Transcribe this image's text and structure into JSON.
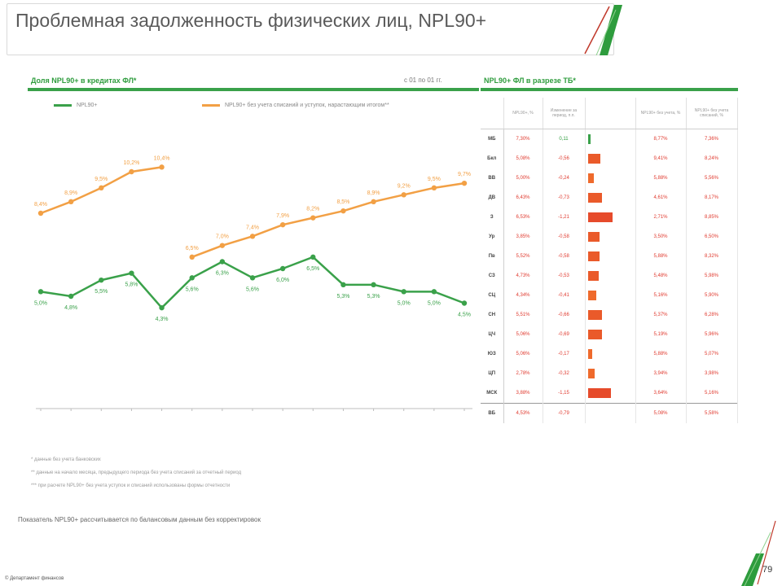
{
  "header": {
    "title": "Проблемная задолженность физических лиц, NPL90+"
  },
  "left_panel": {
    "title": "Доля NPL90+ в кредитах ФЛ*"
  },
  "range_note": "с 01 по 01 гг.",
  "right_panel": {
    "title": "NPL90+ ФЛ в разрезе ТБ*"
  },
  "legend": {
    "series1": "NPL90+",
    "series2": "NPL90+ без учета списаний и уступок, нарастающим итогом**"
  },
  "chart_data": {
    "type": "line",
    "series": [
      {
        "color": "#3aa14a",
        "values": [
          5.0,
          4.8,
          5.5,
          5.8,
          4.3,
          5.6,
          6.3,
          5.6,
          6.0,
          6.5,
          5.3,
          5.3,
          5.0,
          5.0,
          4.5
        ],
        "labels": [
          "5,0%",
          "4,8%",
          "5,5%",
          "5,8%",
          "4,3%",
          "5,6%",
          "6,3%",
          "5,6%",
          "6,0%",
          "6,5%",
          "5,3%",
          "5,3%",
          "5,0%",
          "5,0%",
          "4,5%"
        ]
      },
      {
        "color": "#f2a045",
        "segments": [
          {
            "x": [
              0,
              1,
              2,
              3,
              4
            ],
            "values": [
              8.4,
              8.9,
              9.5,
              10.2,
              10.4
            ],
            "labels": [
              "8,4%",
              "8,9%",
              "9,5%",
              "10,2%",
              "10,4%"
            ]
          },
          {
            "x": [
              5,
              6,
              7,
              8,
              9,
              10,
              11,
              12,
              13,
              14
            ],
            "values": [
              6.5,
              7.0,
              7.4,
              7.9,
              8.2,
              8.5,
              8.9,
              9.2,
              9.5,
              9.7
            ],
            "labels": [
              "6,5%",
              "7,0%",
              "7,4%",
              "7,9%",
              "8,2%",
              "8,5%",
              "8,9%",
              "9,2%",
              "9,5%",
              "9,7%"
            ]
          }
        ]
      }
    ],
    "categories": [
      "",
      "",
      "",
      "",
      "",
      "",
      "",
      "",
      "",
      "",
      "",
      "",
      "",
      "",
      ""
    ],
    "ylim": [
      0,
      12
    ],
    "grid": false,
    "legend_position": "top"
  },
  "table": {
    "columns": [
      "NPL90+, %",
      "Изменение за период, п.п.",
      "",
      "NPL90+ без учета, %",
      "NPL90+ без учета списаний, %"
    ],
    "rows": [
      {
        "label": "МБ",
        "c1": "7,30%",
        "c2": "0,11",
        "bar": 0.06,
        "bar_color": "#3aa14a",
        "c4": "8,77%",
        "c5": "7,36%",
        "pos": true
      },
      {
        "label": "Бкл",
        "c1": "5,08%",
        "c2": "-0,56",
        "bar": 0.48,
        "bar_color": "#ea5a2a",
        "c4": "9,41%",
        "c5": "8,24%",
        "pos": false
      },
      {
        "label": "ВВ",
        "c1": "5,00%",
        "c2": "-0,24",
        "bar": 0.22,
        "bar_color": "#ef6a2c",
        "c4": "5,88%",
        "c5": "5,56%",
        "pos": false
      },
      {
        "label": "ДВ",
        "c1": "6,43%",
        "c2": "-0,73",
        "bar": 0.55,
        "bar_color": "#ea5a2a",
        "c4": "4,61%",
        "c5": "8,17%",
        "pos": false
      },
      {
        "label": "З",
        "c1": "6,53%",
        "c2": "-1,21",
        "bar": 0.95,
        "bar_color": "#e64b2b",
        "c4": "2,71%",
        "c5": "8,85%",
        "pos": false
      },
      {
        "label": "Ур",
        "c1": "3,85%",
        "c2": "-0,58",
        "bar": 0.46,
        "bar_color": "#ea5a2a",
        "c4": "3,50%",
        "c5": "6,50%",
        "pos": false
      },
      {
        "label": "Пв",
        "c1": "5,52%",
        "c2": "-0,58",
        "bar": 0.46,
        "bar_color": "#ea5a2a",
        "c4": "5,88%",
        "c5": "8,32%",
        "pos": false
      },
      {
        "label": "СЗ",
        "c1": "4,73%",
        "c2": "-0,53",
        "bar": 0.42,
        "bar_color": "#ea5a2a",
        "c4": "5,48%",
        "c5": "5,98%",
        "pos": false
      },
      {
        "label": "СЦ",
        "c1": "4,34%",
        "c2": "-0,41",
        "bar": 0.33,
        "bar_color": "#ef6a2c",
        "c4": "5,16%",
        "c5": "5,90%",
        "pos": false
      },
      {
        "label": "СН",
        "c1": "5,51%",
        "c2": "-0,66",
        "bar": 0.55,
        "bar_color": "#ea5a2a",
        "c4": "5,37%",
        "c5": "6,28%",
        "pos": false
      },
      {
        "label": "ЦЧ",
        "c1": "5,06%",
        "c2": "-0,69",
        "bar": 0.56,
        "bar_color": "#ea5a2a",
        "c4": "5,19%",
        "c5": "5,96%",
        "pos": false
      },
      {
        "label": "ЮЗ",
        "c1": "5,06%",
        "c2": "-0,17",
        "bar": 0.16,
        "bar_color": "#ef6a2c",
        "c4": "5,88%",
        "c5": "5,07%",
        "pos": false
      },
      {
        "label": "ЦП",
        "c1": "2,78%",
        "c2": "-0,32",
        "bar": 0.27,
        "bar_color": "#ef6a2c",
        "c4": "3,94%",
        "c5": "3,98%",
        "pos": false
      },
      {
        "label": "МСК",
        "c1": "3,88%",
        "c2": "-1,15",
        "bar": 0.9,
        "bar_color": "#e64b2b",
        "c4": "3,64%",
        "c5": "5,16%",
        "pos": false
      }
    ],
    "total": {
      "label": "ВБ",
      "c1": "4,53%",
      "c2": "-0,79",
      "c4": "5,08%",
      "c5": "5,58%"
    }
  },
  "footnotes": [
    "* данные без учета банковских",
    "** данные на начало месяца, предыдущего периода без учета списаний за отчетный период",
    "*** при расчете NPL90+ без учета уступок и списаний использованы формы отчетности"
  ],
  "note": "Показатель NPL90+ рассчитывается по балансовым данным без корректировок",
  "footer": {
    "left": "© Департамент финансов",
    "page": "79"
  },
  "colors": {
    "green": "#3aa14a",
    "orange": "#f2a045",
    "red": "#e03a2f"
  }
}
